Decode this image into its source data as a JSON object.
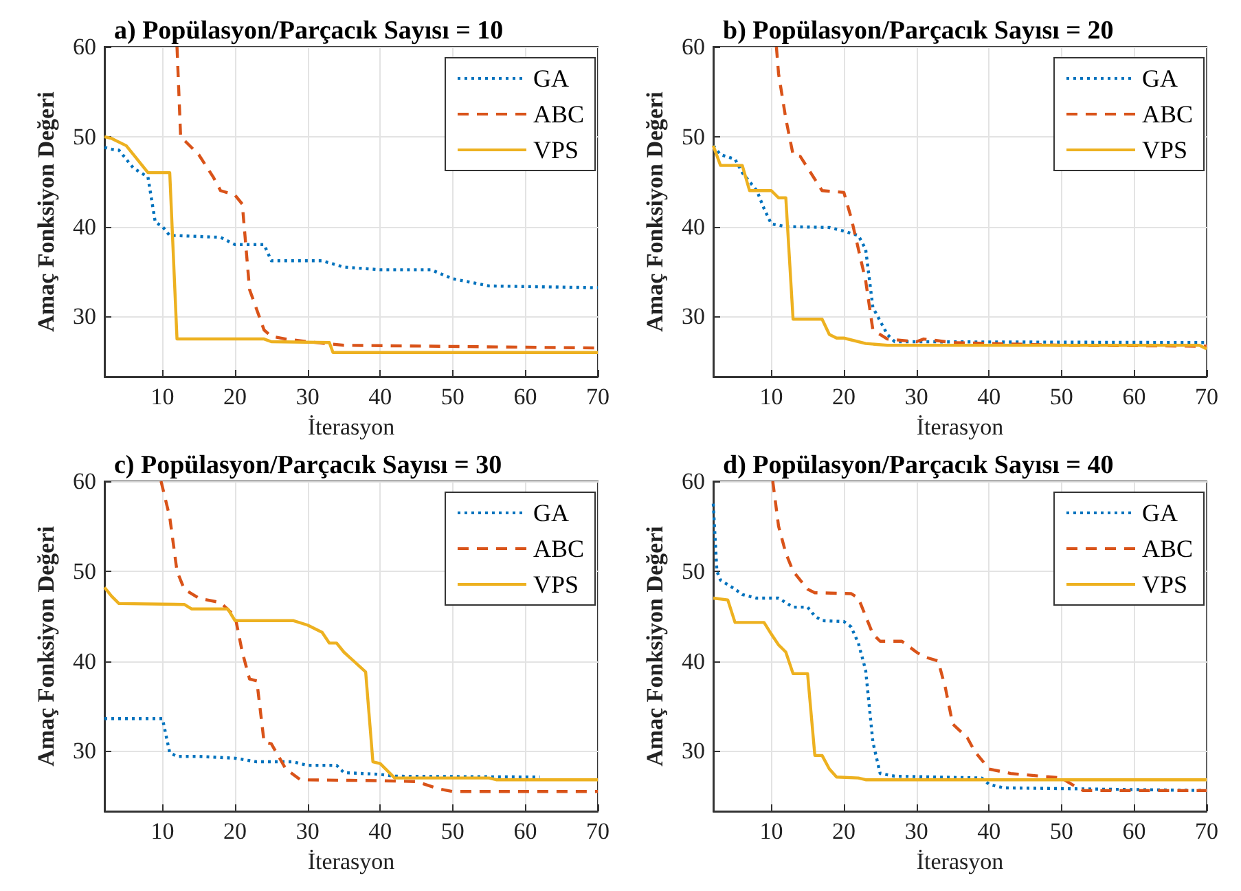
{
  "chart_data": [
    {
      "type": "line",
      "title": "a) Popülasyon/Parçacık Sayısı = 10",
      "xlabel": "İterasyon",
      "ylabel": "Amaç Fonksiyon Değeri",
      "xlim": [
        2,
        70
      ],
      "ylim": [
        23.3,
        60
      ],
      "xticks": [
        10,
        20,
        30,
        40,
        50,
        60,
        70
      ],
      "yticks": [
        30,
        40,
        50,
        60
      ],
      "grid": true,
      "legend": "top right",
      "marker": "none",
      "series": [
        {
          "name": "GA",
          "color": "#0072bd",
          "line_style": "dotted",
          "x": [
            2,
            3,
            4,
            5,
            6,
            7,
            8,
            9,
            10,
            11,
            12,
            18,
            20,
            24,
            25,
            32,
            35,
            40,
            47,
            50,
            55,
            70
          ],
          "values": [
            48.8,
            48.6,
            48.5,
            47.5,
            46.5,
            46,
            45.5,
            40.5,
            40,
            39,
            39,
            38.8,
            38,
            38,
            36.2,
            36.2,
            35.5,
            35.2,
            35.2,
            34.2,
            33.4,
            33.2
          ]
        },
        {
          "name": "ABC",
          "color": "#d95319",
          "line_style": "dashed",
          "x": [
            12,
            12.5,
            15,
            17,
            18,
            20,
            21,
            22,
            24,
            25,
            27,
            30,
            35,
            70
          ],
          "values": [
            60,
            50,
            48,
            45.5,
            44,
            43.5,
            42.5,
            33,
            28.5,
            27.8,
            27.5,
            27.2,
            26.8,
            26.5
          ]
        },
        {
          "name": "VPS",
          "color": "#edb120",
          "line_style": "solid",
          "x": [
            2,
            3,
            5,
            6,
            8,
            11,
            12,
            24,
            25,
            33,
            33.5,
            70
          ],
          "values": [
            50,
            49.8,
            49,
            48,
            46,
            46,
            27.5,
            27.5,
            27.2,
            27.1,
            26,
            26
          ]
        }
      ]
    },
    {
      "type": "line",
      "title": "b) Popülasyon/Parçacık Sayısı = 20",
      "xlabel": "İterasyon",
      "ylabel": "Amaç Fonksiyon Değeri",
      "xlim": [
        2,
        70
      ],
      "ylim": [
        23.3,
        60
      ],
      "xticks": [
        10,
        20,
        30,
        40,
        50,
        60,
        70
      ],
      "yticks": [
        30,
        40,
        50,
        60
      ],
      "grid": true,
      "legend": "top right",
      "marker": "none",
      "series": [
        {
          "name": "GA",
          "color": "#0072bd",
          "line_style": "dotted",
          "x": [
            2,
            3,
            5,
            6,
            8,
            9,
            10,
            12,
            18,
            20,
            22,
            23,
            24,
            25,
            26,
            27,
            70
          ],
          "values": [
            49,
            48,
            47.5,
            46,
            44,
            42,
            40.3,
            40,
            39.9,
            39.5,
            39,
            37.5,
            31,
            29.5,
            28,
            27.2,
            27.1
          ]
        },
        {
          "name": "ABC",
          "color": "#d95319",
          "line_style": "dashed",
          "x": [
            10.7,
            11,
            12,
            13,
            14,
            17,
            20,
            21,
            23,
            24,
            26,
            30,
            31,
            35,
            50,
            70
          ],
          "values": [
            60,
            57,
            52,
            48,
            47.8,
            44,
            43.8,
            41,
            34,
            28.5,
            27.5,
            27.2,
            27.5,
            27.1,
            26.8,
            26.7
          ]
        },
        {
          "name": "VPS",
          "color": "#edb120",
          "line_style": "solid",
          "x": [
            2,
            3,
            6,
            7,
            10,
            11,
            12,
            13,
            17,
            18,
            19,
            20,
            23,
            26,
            69,
            70
          ],
          "values": [
            49,
            46.8,
            46.8,
            44,
            44,
            43.2,
            43.2,
            29.7,
            29.7,
            28,
            27.6,
            27.6,
            27,
            26.8,
            26.8,
            26.4
          ]
        }
      ]
    },
    {
      "type": "line",
      "title": "c) Popülasyon/Parçacık Sayısı = 30",
      "xlabel": "İterasyon",
      "ylabel": "Amaç Fonksiyon Değeri",
      "xlim": [
        2,
        70
      ],
      "ylim": [
        23.3,
        60
      ],
      "xticks": [
        10,
        20,
        30,
        40,
        50,
        60,
        70
      ],
      "yticks": [
        30,
        40,
        50,
        60
      ],
      "grid": true,
      "legend": "top right",
      "marker": "none",
      "series": [
        {
          "name": "GA",
          "color": "#0072bd",
          "line_style": "dotted",
          "x": [
            2,
            10,
            11,
            12,
            15,
            20,
            23,
            28,
            30,
            34,
            35,
            40,
            42,
            62
          ],
          "values": [
            33.6,
            33.6,
            29.8,
            29.4,
            29.4,
            29.2,
            28.8,
            28.8,
            28.4,
            28.4,
            27.6,
            27.4,
            27.2,
            27.1
          ]
        },
        {
          "name": "ABC",
          "color": "#d95319",
          "line_style": "dashed",
          "x": [
            9.8,
            11,
            12,
            13,
            15,
            18,
            20,
            21,
            22,
            23,
            24,
            25,
            27,
            29,
            40,
            45,
            48,
            50,
            70
          ],
          "values": [
            60,
            56,
            50,
            48,
            47,
            46.5,
            45,
            41,
            38,
            37.8,
            31,
            30.8,
            28,
            26.8,
            26.7,
            26.6,
            25.8,
            25.5,
            25.5
          ]
        },
        {
          "name": "VPS",
          "color": "#edb120",
          "line_style": "solid",
          "x": [
            2,
            3,
            4,
            13,
            14,
            19,
            20,
            28,
            30,
            32,
            33,
            34,
            35,
            38,
            39,
            40,
            42,
            55,
            56,
            70
          ],
          "values": [
            48.2,
            47.2,
            46.4,
            46.3,
            45.8,
            45.8,
            44.5,
            44.5,
            44,
            43.2,
            42,
            42,
            41,
            38.8,
            28.8,
            28.6,
            27,
            27,
            26.8,
            26.8
          ]
        }
      ]
    },
    {
      "type": "line",
      "title": "d) Popülasyon/Parçacık Sayısı = 40",
      "xlabel": "İterasyon",
      "ylabel": "Amaç Fonksiyon Değeri",
      "xlim": [
        2,
        70
      ],
      "ylim": [
        23.3,
        60
      ],
      "xticks": [
        10,
        20,
        30,
        40,
        50,
        60,
        70
      ],
      "yticks": [
        30,
        40,
        50,
        60
      ],
      "grid": true,
      "legend": "top right",
      "marker": "none",
      "series": [
        {
          "name": "GA",
          "color": "#0072bd",
          "line_style": "dotted",
          "x": [
            2,
            2.5,
            3,
            5,
            6,
            8,
            11,
            13,
            15,
            16,
            17,
            20,
            21,
            22,
            23,
            24,
            25,
            27,
            39,
            40,
            42,
            52,
            70
          ],
          "values": [
            57.5,
            50,
            49,
            48,
            47.4,
            47,
            47,
            46,
            46,
            45,
            44.5,
            44.4,
            43.8,
            42,
            39,
            31,
            27.5,
            27.2,
            27,
            26.3,
            25.9,
            25.8,
            25.6
          ]
        },
        {
          "name": "ABC",
          "color": "#d95319",
          "line_style": "dashed",
          "x": [
            10.2,
            11,
            12,
            13,
            15,
            16,
            21,
            22,
            23,
            24,
            25,
            28,
            30,
            31,
            33,
            34,
            35,
            37,
            38,
            40,
            43,
            50,
            52,
            53,
            70
          ],
          "values": [
            60,
            55,
            52,
            50,
            48,
            47.6,
            47.5,
            47,
            45,
            43,
            42.2,
            42.2,
            41,
            40.5,
            40,
            37,
            33,
            31.5,
            30,
            28,
            27.5,
            27,
            26,
            25.6,
            25.6
          ]
        },
        {
          "name": "VPS",
          "color": "#edb120",
          "line_style": "solid",
          "x": [
            2,
            4,
            5,
            9,
            10,
            11,
            12,
            13,
            15,
            16,
            17,
            18,
            19,
            22,
            23,
            70
          ],
          "values": [
            47,
            46.8,
            44.3,
            44.3,
            43,
            41.8,
            41,
            38.6,
            38.6,
            29.5,
            29.5,
            28,
            27.1,
            27,
            26.8,
            26.8
          ]
        }
      ]
    }
  ]
}
